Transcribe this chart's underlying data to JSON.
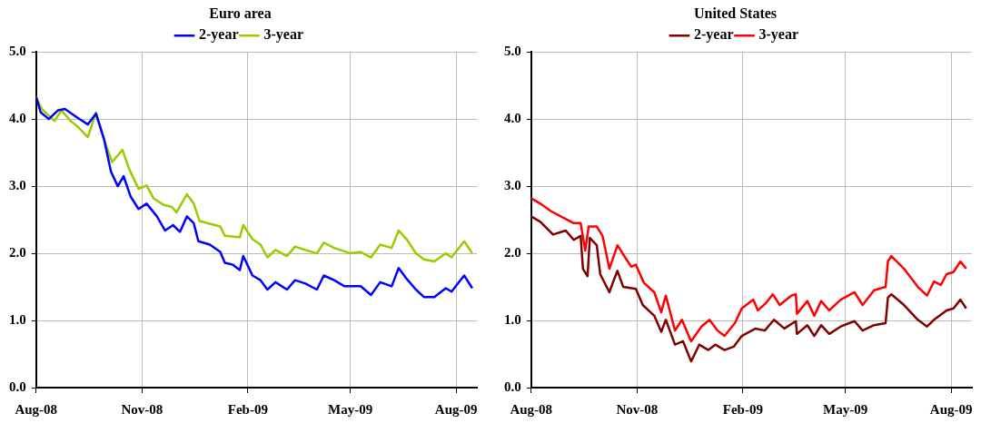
{
  "chart_data": [
    {
      "type": "line",
      "title": "Euro area",
      "legend": "top",
      "grid": true,
      "marker": "none",
      "line_style": "solid",
      "xlim": [
        "2008-08-01",
        "2009-08-19"
      ],
      "xticks": [
        {
          "value": "2008-08-01",
          "label": "Aug-08"
        },
        {
          "value": "2008-11-01",
          "label": "Nov-08"
        },
        {
          "value": "2009-02-01",
          "label": "Feb-09"
        },
        {
          "value": "2009-05-01",
          "label": "May-09"
        },
        {
          "value": "2009-08-01",
          "label": "Aug-09"
        }
      ],
      "ylim": [
        0,
        5
      ],
      "yticks": [
        {
          "value": 0,
          "label": "0.0"
        },
        {
          "value": 1,
          "label": "1.0"
        },
        {
          "value": 2,
          "label": "2.0"
        },
        {
          "value": 3,
          "label": "3.0"
        },
        {
          "value": 4,
          "label": "4.0"
        },
        {
          "value": 5,
          "label": "5.0"
        }
      ],
      "series": [
        {
          "name": "2-year",
          "color": "#0000ff",
          "x": [
            "2008-08-01",
            "2008-08-05",
            "2008-08-12",
            "2008-08-20",
            "2008-08-26",
            "2008-09-06",
            "2008-09-15",
            "2008-09-22",
            "2008-09-29",
            "2008-10-05",
            "2008-10-11",
            "2008-10-16",
            "2008-10-22",
            "2008-10-29",
            "2008-11-05",
            "2008-11-14",
            "2008-11-21",
            "2008-11-28",
            "2008-12-04",
            "2008-12-10",
            "2008-12-16",
            "2008-12-20",
            "2008-12-30",
            "2009-01-08",
            "2009-01-12",
            "2009-01-19",
            "2009-01-25",
            "2009-01-28",
            "2009-02-05",
            "2009-02-12",
            "2009-02-18",
            "2009-02-25",
            "2009-03-07",
            "2009-03-14",
            "2009-03-23",
            "2009-04-02",
            "2009-04-08",
            "2009-04-17",
            "2009-04-26",
            "2009-05-10",
            "2009-05-19",
            "2009-05-27",
            "2009-06-06",
            "2009-06-12",
            "2009-06-19",
            "2009-06-27",
            "2009-07-04",
            "2009-07-13",
            "2009-07-23",
            "2009-07-28",
            "2009-08-08",
            "2009-08-15"
          ],
          "values": [
            4.33,
            4.1,
            4.0,
            4.13,
            4.15,
            4.02,
            3.92,
            4.08,
            3.7,
            3.22,
            3.0,
            3.15,
            2.85,
            2.66,
            2.74,
            2.55,
            2.34,
            2.42,
            2.32,
            2.55,
            2.45,
            2.18,
            2.13,
            2.02,
            1.86,
            1.83,
            1.75,
            1.96,
            1.67,
            1.6,
            1.46,
            1.57,
            1.46,
            1.6,
            1.55,
            1.46,
            1.67,
            1.6,
            1.51,
            1.51,
            1.38,
            1.57,
            1.51,
            1.78,
            1.62,
            1.46,
            1.35,
            1.35,
            1.48,
            1.43,
            1.67,
            1.48
          ]
        },
        {
          "name": "3-year",
          "color": "#99cc00",
          "x": [
            "2008-08-01",
            "2008-08-06",
            "2008-08-17",
            "2008-08-23",
            "2008-08-31",
            "2008-09-06",
            "2008-09-15",
            "2008-09-22",
            "2008-09-30",
            "2008-10-06",
            "2008-10-15",
            "2008-10-21",
            "2008-10-29",
            "2008-11-05",
            "2008-11-11",
            "2008-11-20",
            "2008-11-27",
            "2008-12-01",
            "2008-12-10",
            "2008-12-16",
            "2008-12-21",
            "2009-01-08",
            "2009-01-12",
            "2009-01-25",
            "2009-01-28",
            "2009-02-05",
            "2009-02-12",
            "2009-02-18",
            "2009-02-25",
            "2009-03-07",
            "2009-03-14",
            "2009-03-23",
            "2009-04-02",
            "2009-04-08",
            "2009-04-17",
            "2009-05-01",
            "2009-05-10",
            "2009-05-19",
            "2009-05-27",
            "2009-06-06",
            "2009-06-12",
            "2009-06-19",
            "2009-06-27",
            "2009-07-04",
            "2009-07-13",
            "2009-07-23",
            "2009-07-28",
            "2009-08-08",
            "2009-08-15"
          ],
          "values": [
            4.33,
            4.15,
            3.97,
            4.13,
            3.97,
            3.89,
            3.73,
            4.1,
            3.65,
            3.36,
            3.54,
            3.25,
            2.96,
            3.01,
            2.82,
            2.72,
            2.69,
            2.61,
            2.88,
            2.74,
            2.48,
            2.4,
            2.26,
            2.24,
            2.42,
            2.21,
            2.13,
            1.94,
            2.05,
            1.96,
            2.1,
            2.05,
            2.0,
            2.16,
            2.08,
            2.0,
            2.02,
            1.94,
            2.13,
            2.08,
            2.34,
            2.21,
            2.0,
            1.91,
            1.88,
            2.0,
            1.94,
            2.18,
            2.0
          ]
        }
      ]
    },
    {
      "type": "line",
      "title": "United States",
      "legend": "top",
      "grid": true,
      "marker": "none",
      "line_style": "solid",
      "xlim": [
        "2008-08-01",
        "2009-08-19"
      ],
      "xticks": [
        {
          "value": "2008-08-01",
          "label": "Aug-08"
        },
        {
          "value": "2008-11-01",
          "label": "Nov-08"
        },
        {
          "value": "2009-02-01",
          "label": "Feb-09"
        },
        {
          "value": "2009-05-01",
          "label": "May-09"
        },
        {
          "value": "2009-08-01",
          "label": "Aug-09"
        }
      ],
      "ylim": [
        0,
        5
      ],
      "yticks": [
        {
          "value": 0,
          "label": "0.0"
        },
        {
          "value": 1,
          "label": "1.0"
        },
        {
          "value": 2,
          "label": "2.0"
        },
        {
          "value": 3,
          "label": "3.0"
        },
        {
          "value": 4,
          "label": "4.0"
        },
        {
          "value": 5,
          "label": "5.0"
        }
      ],
      "series": [
        {
          "name": "2-year",
          "color": "#800000",
          "x": [
            "2008-08-01",
            "2008-08-09",
            "2008-08-20",
            "2008-08-31",
            "2008-09-07",
            "2008-09-13",
            "2008-09-15",
            "2008-09-19",
            "2008-09-21",
            "2008-09-27",
            "2008-09-30",
            "2008-10-08",
            "2008-10-12",
            "2008-10-15",
            "2008-10-20",
            "2008-10-31",
            "2008-11-06",
            "2008-11-16",
            "2008-11-22",
            "2008-11-26",
            "2008-12-04",
            "2008-12-11",
            "2008-12-18",
            "2008-12-25",
            "2009-01-02",
            "2009-01-08",
            "2009-01-16",
            "2009-01-24",
            "2009-01-31",
            "2009-02-12",
            "2009-02-20",
            "2009-02-28",
            "2009-03-09",
            "2009-03-19",
            "2009-03-20",
            "2009-03-29",
            "2009-04-04",
            "2009-04-10",
            "2009-04-17",
            "2009-04-27",
            "2009-05-09",
            "2009-05-16",
            "2009-05-26",
            "2009-06-05",
            "2009-06-07",
            "2009-06-10",
            "2009-06-21",
            "2009-07-03",
            "2009-07-11",
            "2009-07-17",
            "2009-07-28",
            "2009-08-03",
            "2009-08-09",
            "2009-08-14"
          ],
          "values": [
            2.55,
            2.47,
            2.28,
            2.34,
            2.2,
            2.26,
            1.77,
            1.66,
            2.23,
            2.12,
            1.69,
            1.42,
            1.61,
            1.74,
            1.5,
            1.47,
            1.23,
            1.07,
            0.83,
            1.01,
            0.64,
            0.69,
            0.39,
            0.64,
            0.56,
            0.64,
            0.56,
            0.61,
            0.77,
            0.88,
            0.85,
            1.01,
            0.88,
            0.99,
            0.8,
            0.93,
            0.77,
            0.93,
            0.8,
            0.91,
            0.99,
            0.85,
            0.93,
            0.96,
            1.34,
            1.39,
            1.23,
            1.01,
            0.91,
            1.01,
            1.15,
            1.18,
            1.31,
            1.18
          ]
        },
        {
          "name": "3-year",
          "color": "#ff0000",
          "x": [
            "2008-08-01",
            "2008-08-09",
            "2008-08-18",
            "2008-08-29",
            "2008-09-07",
            "2008-09-13",
            "2008-09-17",
            "2008-09-20",
            "2008-09-27",
            "2008-10-02",
            "2008-10-08",
            "2008-10-15",
            "2008-10-22",
            "2008-10-27",
            "2008-10-31",
            "2008-11-07",
            "2008-11-16",
            "2008-11-22",
            "2008-11-26",
            "2008-12-04",
            "2008-12-10",
            "2008-12-18",
            "2008-12-27",
            "2009-01-03",
            "2009-01-10",
            "2009-01-16",
            "2009-01-25",
            "2009-01-31",
            "2009-02-10",
            "2009-02-14",
            "2009-02-21",
            "2009-02-27",
            "2009-03-05",
            "2009-03-15",
            "2009-03-19",
            "2009-03-20",
            "2009-03-29",
            "2009-04-04",
            "2009-04-10",
            "2009-04-17",
            "2009-04-27",
            "2009-05-09",
            "2009-05-16",
            "2009-05-26",
            "2009-06-05",
            "2009-06-07",
            "2009-06-10",
            "2009-06-21",
            "2009-07-03",
            "2009-07-11",
            "2009-07-17",
            "2009-07-23",
            "2009-07-28",
            "2009-08-03",
            "2009-08-09",
            "2009-08-14"
          ],
          "values": [
            2.82,
            2.74,
            2.63,
            2.53,
            2.45,
            2.45,
            2.04,
            2.4,
            2.4,
            2.26,
            1.77,
            2.12,
            1.93,
            1.8,
            1.83,
            1.56,
            1.42,
            1.12,
            1.37,
            0.85,
            1.01,
            0.69,
            0.91,
            1.01,
            0.85,
            0.77,
            0.96,
            1.18,
            1.31,
            1.15,
            1.26,
            1.39,
            1.23,
            1.37,
            1.39,
            1.1,
            1.29,
            1.07,
            1.29,
            1.15,
            1.31,
            1.42,
            1.23,
            1.45,
            1.5,
            1.88,
            1.96,
            1.77,
            1.5,
            1.37,
            1.58,
            1.53,
            1.69,
            1.72,
            1.88,
            1.77
          ]
        }
      ]
    }
  ]
}
